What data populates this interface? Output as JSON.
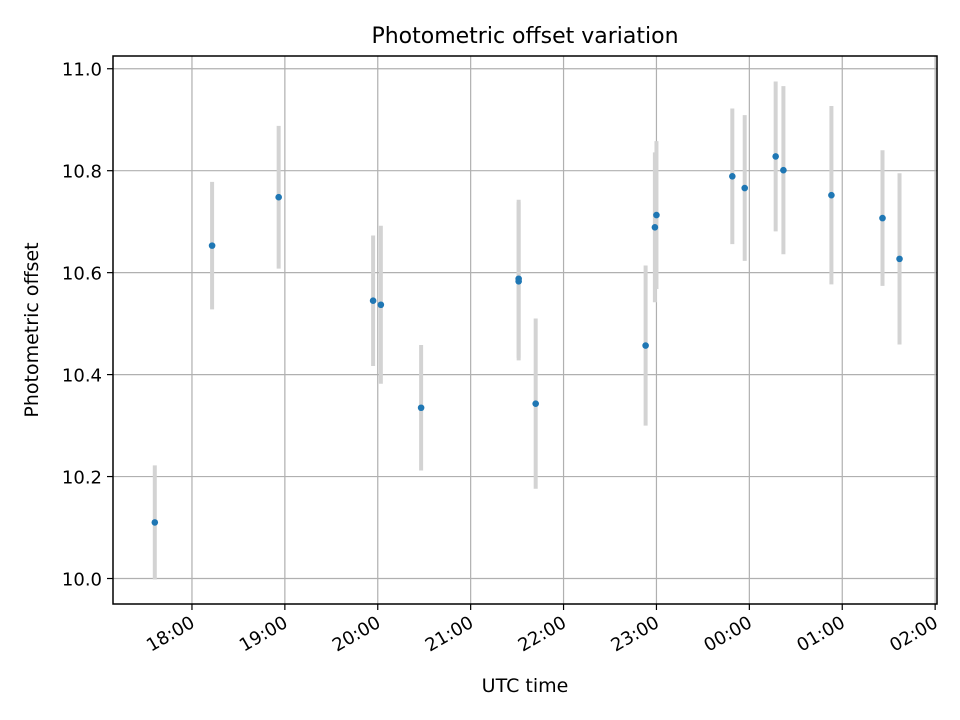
{
  "chart_data": {
    "type": "scatter",
    "title": "Photometric offset variation",
    "xlabel": "UTC time",
    "ylabel": "Photometric offset",
    "x_ticks": [
      "18:00",
      "19:00",
      "20:00",
      "21:00",
      "22:00",
      "23:00",
      "00:00",
      "01:00",
      "02:00"
    ],
    "y_ticks": [
      "10.0",
      "10.2",
      "10.4",
      "10.6",
      "10.8",
      "11.0"
    ],
    "xlim_hours": [
      17.15,
      26.02
    ],
    "ylim": [
      9.95,
      11.025
    ],
    "grid": true,
    "marker_color": "#1f77b4",
    "errorbar_color": "#d3d3d3",
    "points": [
      {
        "t": "17:36",
        "y": 10.11,
        "err": 0.112
      },
      {
        "t": "18:13",
        "y": 10.653,
        "err": 0.125
      },
      {
        "t": "18:56",
        "y": 10.748,
        "err": 0.14
      },
      {
        "t": "19:57",
        "y": 10.545,
        "err": 0.128
      },
      {
        "t": "20:02",
        "y": 10.537,
        "err": 0.155
      },
      {
        "t": "20:28",
        "y": 10.335,
        "err": 0.123
      },
      {
        "t": "21:31",
        "y": 10.588,
        "err": 0.155
      },
      {
        "t": "21:31",
        "y": 10.583,
        "err": 0.155
      },
      {
        "t": "21:42",
        "y": 10.343,
        "err": 0.167
      },
      {
        "t": "22:53",
        "y": 10.457,
        "err": 0.157
      },
      {
        "t": "22:59",
        "y": 10.689,
        "err": 0.147
      },
      {
        "t": "23:00",
        "y": 10.713,
        "err": 0.145
      },
      {
        "t": "23:49",
        "y": 10.789,
        "err": 0.133
      },
      {
        "t": "23:57",
        "y": 10.766,
        "err": 0.143
      },
      {
        "t": "00:17",
        "y": 10.828,
        "err": 0.147
      },
      {
        "t": "00:22",
        "y": 10.801,
        "err": 0.165
      },
      {
        "t": "00:53",
        "y": 10.752,
        "err": 0.175
      },
      {
        "t": "01:26",
        "y": 10.707,
        "err": 0.133
      },
      {
        "t": "01:37",
        "y": 10.627,
        "err": 0.168
      }
    ]
  }
}
